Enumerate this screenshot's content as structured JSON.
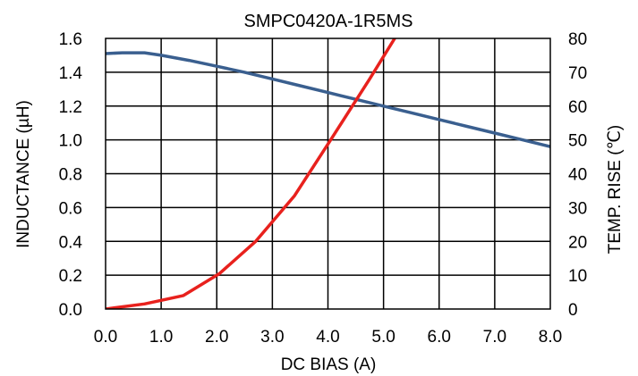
{
  "chart_data": {
    "type": "line",
    "title": "SMPC0420A-1R5MS",
    "xlabel": "DC BIAS (A)",
    "ylabel": "INDUCTANCE (µH)",
    "y2label": "TEMP. RISE (℃)",
    "xlim": [
      0,
      8
    ],
    "ylim": [
      0,
      1.6
    ],
    "y2lim": [
      0,
      80
    ],
    "grid": true,
    "x_ticks": [
      "0.0",
      "1.0",
      "2.0",
      "3.0",
      "4.0",
      "5.0",
      "6.0",
      "7.0",
      "8.0"
    ],
    "y_ticks": [
      "0.0",
      "0.2",
      "0.4",
      "0.6",
      "0.8",
      "1.0",
      "1.2",
      "1.4",
      "1.6"
    ],
    "y2_ticks": [
      "0",
      "10",
      "20",
      "30",
      "40",
      "50",
      "60",
      "70",
      "80"
    ],
    "series": [
      {
        "axis": "left",
        "color": "#3a5f8f",
        "x": [
          0,
          0.3,
          0.7,
          1.0,
          1.5,
          2.0,
          2.5,
          3.0,
          3.5,
          4.0,
          4.5,
          5.0,
          5.5,
          6.0,
          6.5,
          7.0,
          7.5,
          8.0
        ],
        "y": [
          1.51,
          1.515,
          1.515,
          1.5,
          1.47,
          1.435,
          1.4,
          1.36,
          1.32,
          1.28,
          1.24,
          1.2,
          1.16,
          1.12,
          1.08,
          1.04,
          1.0,
          0.96
        ]
      },
      {
        "axis": "right",
        "color": "#e8211d",
        "x": [
          0,
          0.7,
          1.4,
          2.05,
          2.7,
          3.4,
          4.05,
          4.75,
          5.2
        ],
        "y": [
          0,
          1.5,
          4,
          10.5,
          20,
          33.5,
          50,
          68,
          80
        ]
      }
    ]
  }
}
